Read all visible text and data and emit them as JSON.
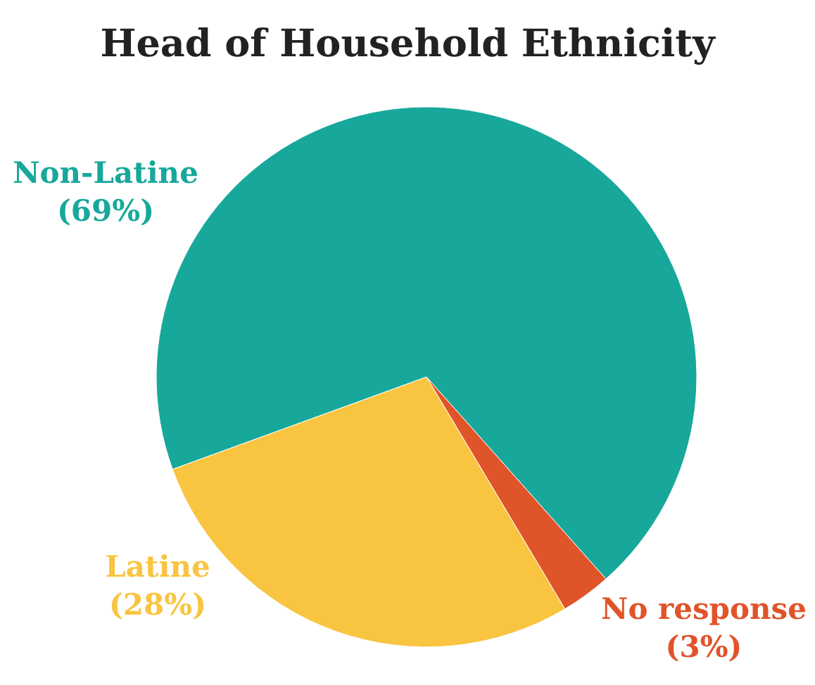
{
  "chart_data": {
    "type": "pie",
    "title": "Head of Household Ethnicity",
    "categories": [
      "Non-Latine",
      "No response",
      "Latine"
    ],
    "values": [
      69,
      3,
      28
    ],
    "colors": [
      "#17a89b",
      "#e0542a",
      "#f9c440"
    ],
    "value_labels": [
      "(69%)",
      "(3%)",
      "(28%)"
    ],
    "legend": false
  }
}
